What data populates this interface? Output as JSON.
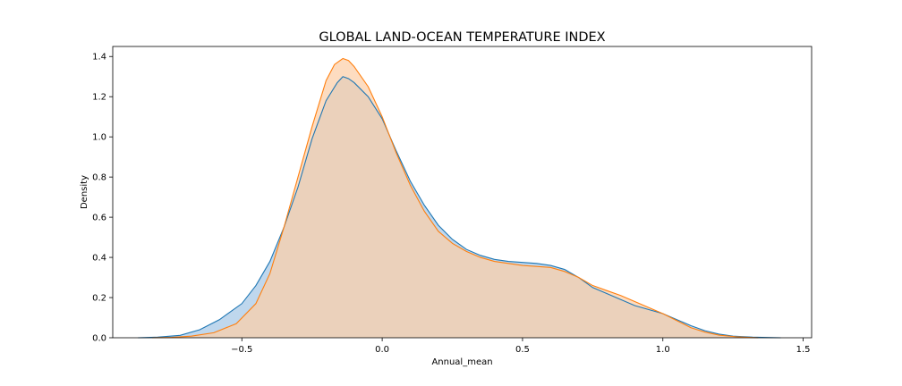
{
  "chart_data": {
    "type": "area",
    "title": "GLOBAL LAND-OCEAN TEMPERATURE INDEX",
    "xlabel": "Annual_mean",
    "ylabel": "Density",
    "xlim": [
      -0.96,
      1.53
    ],
    "ylim": [
      0,
      1.45
    ],
    "xticks": [
      -0.5,
      0.0,
      0.5,
      1.0,
      1.5
    ],
    "xtick_labels": [
      "−0.5",
      "0.0",
      "0.5",
      "1.0",
      "1.5"
    ],
    "yticks": [
      0.0,
      0.2,
      0.4,
      0.6,
      0.8,
      1.0,
      1.2,
      1.4
    ],
    "ytick_labels": [
      "0.0",
      "0.2",
      "0.4",
      "0.6",
      "0.8",
      "1.0",
      "1.2",
      "1.4"
    ],
    "grid": false,
    "legend": "none",
    "series": [
      {
        "color": "#1f77b4",
        "fill": "#a6c8e6",
        "points": [
          [
            -0.87,
            0.0
          ],
          [
            -0.8,
            0.003
          ],
          [
            -0.72,
            0.012
          ],
          [
            -0.65,
            0.04
          ],
          [
            -0.58,
            0.09
          ],
          [
            -0.5,
            0.17
          ],
          [
            -0.45,
            0.26
          ],
          [
            -0.4,
            0.38
          ],
          [
            -0.35,
            0.55
          ],
          [
            -0.3,
            0.75
          ],
          [
            -0.25,
            0.99
          ],
          [
            -0.2,
            1.18
          ],
          [
            -0.16,
            1.27
          ],
          [
            -0.14,
            1.3
          ],
          [
            -0.12,
            1.29
          ],
          [
            -0.1,
            1.27
          ],
          [
            -0.05,
            1.2
          ],
          [
            0.0,
            1.09
          ],
          [
            0.05,
            0.93
          ],
          [
            0.1,
            0.78
          ],
          [
            0.15,
            0.66
          ],
          [
            0.2,
            0.56
          ],
          [
            0.25,
            0.49
          ],
          [
            0.3,
            0.44
          ],
          [
            0.35,
            0.41
          ],
          [
            0.4,
            0.39
          ],
          [
            0.45,
            0.38
          ],
          [
            0.5,
            0.375
          ],
          [
            0.55,
            0.37
          ],
          [
            0.6,
            0.36
          ],
          [
            0.65,
            0.34
          ],
          [
            0.7,
            0.3
          ],
          [
            0.75,
            0.25
          ],
          [
            0.8,
            0.22
          ],
          [
            0.85,
            0.19
          ],
          [
            0.9,
            0.16
          ],
          [
            0.95,
            0.14
          ],
          [
            1.0,
            0.12
          ],
          [
            1.05,
            0.09
          ],
          [
            1.1,
            0.06
          ],
          [
            1.15,
            0.035
          ],
          [
            1.2,
            0.018
          ],
          [
            1.25,
            0.008
          ],
          [
            1.32,
            0.003
          ],
          [
            1.42,
            0.0
          ]
        ]
      },
      {
        "color": "#ff7f0e",
        "fill": "#fccfa8",
        "points": [
          [
            -0.82,
            0.0
          ],
          [
            -0.75,
            0.002
          ],
          [
            -0.68,
            0.008
          ],
          [
            -0.6,
            0.025
          ],
          [
            -0.52,
            0.07
          ],
          [
            -0.45,
            0.17
          ],
          [
            -0.4,
            0.32
          ],
          [
            -0.35,
            0.55
          ],
          [
            -0.3,
            0.8
          ],
          [
            -0.25,
            1.05
          ],
          [
            -0.2,
            1.28
          ],
          [
            -0.17,
            1.36
          ],
          [
            -0.14,
            1.39
          ],
          [
            -0.12,
            1.38
          ],
          [
            -0.1,
            1.35
          ],
          [
            -0.05,
            1.25
          ],
          [
            0.0,
            1.1
          ],
          [
            0.05,
            0.92
          ],
          [
            0.1,
            0.76
          ],
          [
            0.15,
            0.63
          ],
          [
            0.2,
            0.53
          ],
          [
            0.25,
            0.47
          ],
          [
            0.3,
            0.43
          ],
          [
            0.35,
            0.4
          ],
          [
            0.4,
            0.38
          ],
          [
            0.45,
            0.37
          ],
          [
            0.5,
            0.36
          ],
          [
            0.55,
            0.355
          ],
          [
            0.6,
            0.35
          ],
          [
            0.65,
            0.33
          ],
          [
            0.7,
            0.3
          ],
          [
            0.75,
            0.26
          ],
          [
            0.8,
            0.235
          ],
          [
            0.85,
            0.21
          ],
          [
            0.9,
            0.18
          ],
          [
            0.95,
            0.15
          ],
          [
            1.0,
            0.12
          ],
          [
            1.05,
            0.085
          ],
          [
            1.1,
            0.05
          ],
          [
            1.15,
            0.028
          ],
          [
            1.2,
            0.013
          ],
          [
            1.26,
            0.005
          ],
          [
            1.34,
            0.0
          ]
        ]
      }
    ]
  }
}
